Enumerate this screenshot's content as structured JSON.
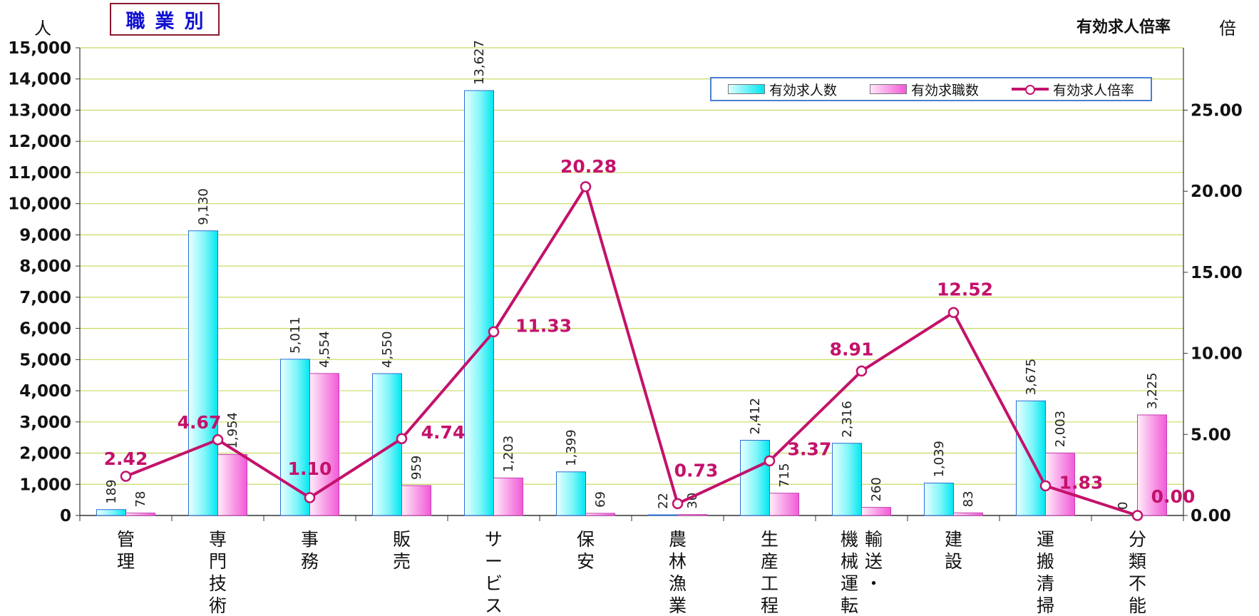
{
  "header": {
    "title": "職業別",
    "left_unit": "人",
    "right_title": "有効求人倍率",
    "right_unit": "倍"
  },
  "legend": {
    "openings": "有効求人数",
    "seekers": "有効求職数",
    "ratio": "有効求人倍率"
  },
  "colors": {
    "openings": "#00e6f0",
    "seekers": "#f25ad8",
    "line": "#c3126b",
    "grid": "#c8dc64",
    "plot_bg": "#ffffff"
  },
  "chart_data": {
    "type": "bar",
    "categories": [
      "管理",
      "専門技術",
      "事務",
      "販売",
      "サービス",
      "保安",
      "農林漁業",
      "生産工程",
      "輸送・機械運転",
      "建設",
      "運搬清掃",
      "分類不能"
    ],
    "category_lines": [
      [
        [
          "管",
          "理"
        ]
      ],
      [
        [
          "専",
          "門",
          "技",
          "術"
        ]
      ],
      [
        [
          "事",
          "務"
        ]
      ],
      [
        [
          "販",
          "売"
        ]
      ],
      [
        [
          "サ",
          "ー",
          "ビ",
          "ス"
        ]
      ],
      [
        [
          "保",
          "安"
        ]
      ],
      [
        [
          "農",
          "林",
          "漁",
          "業"
        ]
      ],
      [
        [
          "生",
          "産",
          "工",
          "程"
        ]
      ],
      [
        [
          "機",
          "械",
          "運",
          "転"
        ],
        [
          "輸",
          "送",
          "・"
        ]
      ],
      [
        [
          "建",
          "設"
        ]
      ],
      [
        [
          "運",
          "搬",
          "清",
          "掃"
        ]
      ],
      [
        [
          "分",
          "類",
          "不",
          "能"
        ]
      ]
    ],
    "series": [
      {
        "name": "有効求人数",
        "axis": "left",
        "values": [
          189,
          9130,
          5011,
          4550,
          13627,
          1399,
          22,
          2412,
          2316,
          1039,
          3675,
          0
        ],
        "labels": [
          "189",
          "9,130",
          "5,011",
          "4,550",
          "13,627",
          "1,399",
          "22",
          "2,412",
          "2,316",
          "1,039",
          "3,675",
          "0"
        ]
      },
      {
        "name": "有効求職数",
        "axis": "left",
        "values": [
          78,
          1954,
          4554,
          959,
          1203,
          69,
          30,
          715,
          260,
          83,
          2003,
          3225
        ],
        "labels": [
          "78",
          "1,954",
          "4,554",
          "959",
          "1,203",
          "69",
          "30",
          "715",
          "260",
          "83",
          "2,003",
          "3,225"
        ]
      },
      {
        "name": "有効求人倍率",
        "type": "line",
        "axis": "right",
        "values": [
          2.42,
          4.67,
          1.1,
          4.74,
          11.33,
          20.28,
          0.73,
          3.37,
          8.91,
          12.52,
          1.83,
          0.0
        ],
        "labels": [
          "2.42",
          "4.67",
          "1.10",
          "4.74",
          "11.33",
          "20.28",
          "0.73",
          "3.37",
          "8.91",
          "12.52",
          "1.83",
          "0.00"
        ]
      }
    ],
    "y_left": {
      "min": 0,
      "max": 15000,
      "step": 1000,
      "ticks": [
        "0",
        "1,000",
        "2,000",
        "3,000",
        "4,000",
        "5,000",
        "6,000",
        "7,000",
        "8,000",
        "9,000",
        "10,000",
        "11,000",
        "12,000",
        "13,000",
        "14,000",
        "15,000"
      ]
    },
    "y_right": {
      "min": 0,
      "max": 28.85,
      "ticks": [
        0,
        5,
        10,
        15,
        20,
        25
      ],
      "tick_labels": [
        "0.00",
        "5.00",
        "10.00",
        "15.00",
        "20.00",
        "25.00"
      ]
    },
    "grid": true,
    "legend_position": "top-right"
  }
}
